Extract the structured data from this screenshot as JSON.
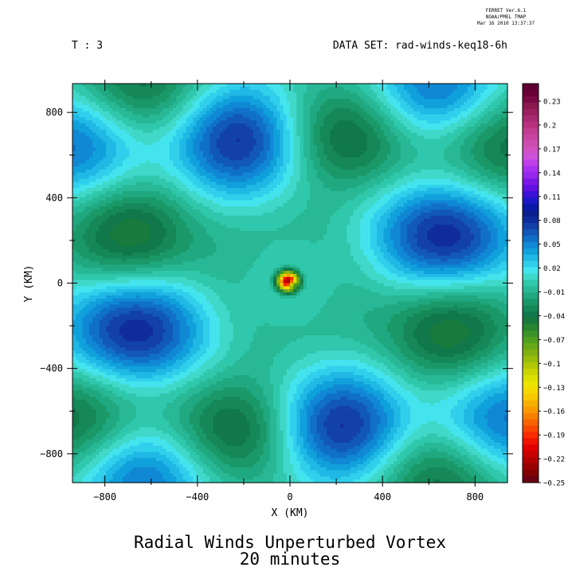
{
  "header": {
    "program_name": "FERRET  Ver.6.1",
    "program_org": "NOAA/PMEL TMAP",
    "program_date": "Mar 16 2010 13:37:37",
    "time_label": "T : 3",
    "dataset_label": "DATA SET: rad-winds-keq18-6h"
  },
  "chart_data": {
    "type": "heatmap",
    "title": "Radial Winds Unperturbed Vortex",
    "subtitle": "20 minutes",
    "xlabel": "X (KM)",
    "ylabel": "Y (KM)",
    "xlim": [
      -940,
      940
    ],
    "ylim": [
      -935,
      935
    ],
    "x_ticks": [
      -800,
      -400,
      0,
      400,
      800
    ],
    "y_ticks": [
      -800,
      -400,
      0,
      400,
      800
    ],
    "colorbar": {
      "min": -0.25,
      "max": 0.25,
      "step": 0.01,
      "labels": [
        "0.23",
        "0.2",
        "0.17",
        "0.14",
        "0.11",
        "0.08",
        "0.05",
        "0.02",
        "-0.01",
        "-0.04",
        "-0.07",
        "-0.1",
        "-0.13",
        "-0.16",
        "-0.19",
        "-0.22",
        "-0.25"
      ],
      "colors": [
        "#5e0030",
        "#6a0038",
        "#7a0a44",
        "#8c1850",
        "#9a2060",
        "#a82a70",
        "#b8307e",
        "#c23c90",
        "#c844a0",
        "#cc4cb0",
        "#d050c4",
        "#cc50d8",
        "#c040e8",
        "#a830f0",
        "#9428ec",
        "#7a18e8",
        "#6010e0",
        "#3a10d8",
        "#1c18c8",
        "#0a18a8",
        "#0a2090",
        "#102c9c",
        "#1242a8",
        "#1258b8",
        "#1070c8",
        "#1088d4",
        "#10a0dc",
        "#20b8e4",
        "#30d0ec",
        "#44e4ee",
        "#40d8c8",
        "#30c8ac",
        "#28b896",
        "#20a880",
        "#1a9868",
        "#168858",
        "#10784a",
        "#187a3c",
        "#288630",
        "#3a9428",
        "#50a01e",
        "#68a816",
        "#80b010",
        "#98bc0c",
        "#b0c808",
        "#c8d404",
        "#dce000",
        "#ece400",
        "#f4d800",
        "#f8c800",
        "#f8b000",
        "#f89a00",
        "#f88000",
        "#f86400",
        "#f84800",
        "#f82c00",
        "#f01400",
        "#e00000",
        "#c80000",
        "#b00000",
        "#980000",
        "#800000",
        "#6a0010"
      ]
    },
    "field": {
      "domain_half_width_km": 940,
      "background_value": 0.0,
      "ring_wavelength_km": 1100,
      "centers": [
        {
          "x": -220,
          "y": 680,
          "value": 0.085
        },
        {
          "x": 220,
          "y": 680,
          "value": -0.055
        },
        {
          "x": -680,
          "y": 220,
          "value": -0.055
        },
        {
          "x": 680,
          "y": 220,
          "value": 0.085
        },
        {
          "x": -680,
          "y": -220,
          "value": 0.085
        },
        {
          "x": 680,
          "y": -220,
          "value": -0.055
        },
        {
          "x": -220,
          "y": -680,
          "value": -0.055
        },
        {
          "x": 220,
          "y": -680,
          "value": 0.085
        },
        {
          "x": -640,
          "y": 900,
          "value": -0.05
        },
        {
          "x": 640,
          "y": 900,
          "value": 0.06
        },
        {
          "x": -640,
          "y": -900,
          "value": 0.06
        },
        {
          "x": 640,
          "y": -900,
          "value": -0.05
        },
        {
          "x": -920,
          "y": 650,
          "value": 0.06
        },
        {
          "x": 920,
          "y": 650,
          "value": -0.05
        },
        {
          "x": -920,
          "y": -650,
          "value": -0.05
        },
        {
          "x": 920,
          "y": -650,
          "value": 0.06
        }
      ],
      "vortex": {
        "x": 0,
        "y": 0,
        "min_value": -0.25,
        "max_value": 0.03
      }
    }
  }
}
